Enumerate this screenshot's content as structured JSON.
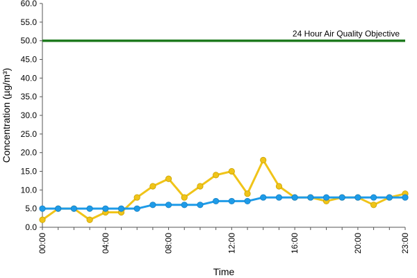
{
  "chart_data": {
    "type": "line",
    "xlabel": "Time",
    "ylabel": "Concentration (µg/m³)",
    "ylim": [
      0,
      60
    ],
    "yticks": [
      "0.0",
      "5.0",
      "10.0",
      "15.0",
      "20.0",
      "25.0",
      "30.0",
      "35.0",
      "40.0",
      "45.0",
      "50.0",
      "55.0",
      "60.0"
    ],
    "xrange": [
      0,
      23
    ],
    "xtick_hours": [
      0,
      4,
      8,
      12,
      16,
      20,
      23
    ],
    "xtick_labels": [
      "00:00",
      "04:00",
      "08:00",
      "12:00",
      "16:00",
      "20:00",
      "23:00"
    ],
    "grid": false,
    "objective": {
      "label": "24 Hour Air Quality Objective",
      "value": 50,
      "color": "#1e7a1e"
    },
    "series": [
      {
        "color": "#f0c419",
        "x": [
          0,
          1,
          2,
          3,
          4,
          5,
          6,
          7,
          8,
          9,
          10,
          11,
          12,
          13,
          14,
          15,
          16,
          17,
          18,
          19,
          20,
          21,
          22,
          23
        ],
        "values": [
          2,
          5,
          5,
          2,
          4,
          4,
          8,
          11,
          13,
          8,
          11,
          14,
          15,
          9,
          18,
          11,
          8,
          8,
          7,
          8,
          8,
          6,
          8,
          9
        ]
      },
      {
        "color": "#1e9be8",
        "x": [
          0,
          1,
          2,
          3,
          4,
          5,
          6,
          7,
          8,
          9,
          10,
          11,
          12,
          13,
          14,
          15,
          16,
          17,
          18,
          19,
          20,
          21,
          22,
          23
        ],
        "values": [
          5,
          5,
          5,
          5,
          5,
          5,
          5,
          6,
          6,
          6,
          6,
          7,
          7,
          7,
          8,
          8,
          8,
          8,
          8,
          8,
          8,
          8,
          8,
          8
        ]
      }
    ]
  }
}
